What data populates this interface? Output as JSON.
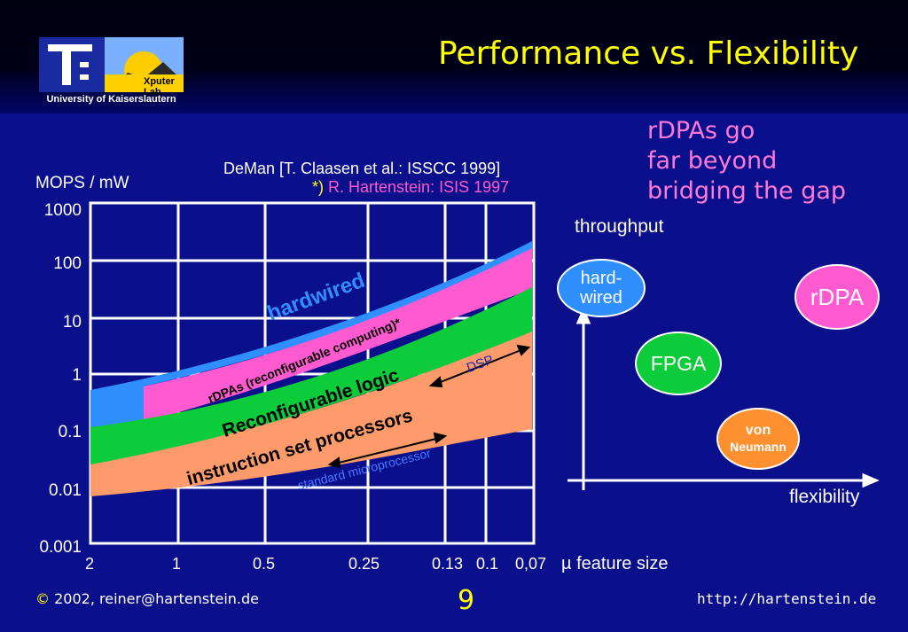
{
  "header": {
    "title": "Performance vs. Flexibility",
    "logo_lab": "Xputer Lab",
    "logo_caption": "University of Kaiserslautern"
  },
  "note": {
    "line1": "rDPAs go",
    "line2": "far beyond",
    "line3": "bridging the gap"
  },
  "chart_data": {
    "type": "area",
    "ylabel": "MOPS / mW",
    "xlabel": "µ feature size",
    "y_ticks": [
      "1000",
      "100",
      "10",
      "1",
      "0.1",
      "0.01",
      "0.001"
    ],
    "x_ticks": [
      "2",
      "1",
      "0.5",
      "0.25",
      "0.13",
      "0.1",
      "0,07"
    ],
    "scale": "log",
    "ylim": [
      0.001,
      1000
    ],
    "source": "DeMan [T. Claasen et al.: ISSCC 1999]",
    "source2_mark": "*)",
    "source2": "R. Hartenstein: ISIS 1997",
    "bands": [
      {
        "label": "hardwired",
        "color": "#2f8fff"
      },
      {
        "label": "rDPAs (reconfigurable computing)*",
        "color": "#ff5ad0"
      },
      {
        "label": "Reconfigurable logic",
        "color": "#0ccc3a"
      },
      {
        "label": "instruction set processors",
        "color": "#ff9a6a"
      }
    ],
    "annotations": {
      "dsp": "DSP",
      "micro": "standard microprocessor"
    }
  },
  "diagram": {
    "y_axis": "throughput",
    "x_axis": "flexibility",
    "nodes": [
      {
        "line1": "hard-",
        "line2": "wired",
        "color": "#2f8fff"
      },
      {
        "line1": "rDPA",
        "line2": "",
        "color": "#ff5ad0"
      },
      {
        "line1": "FPGA",
        "line2": "",
        "color": "#0ccc3a"
      },
      {
        "line1": "von",
        "line2": "Neumann",
        "color": "#ff9030"
      }
    ]
  },
  "footer": {
    "copyright": "©",
    "year": "2002,",
    "email": "reiner@hartenstein.de",
    "page": "9",
    "url": "http://hartenstein.de"
  }
}
